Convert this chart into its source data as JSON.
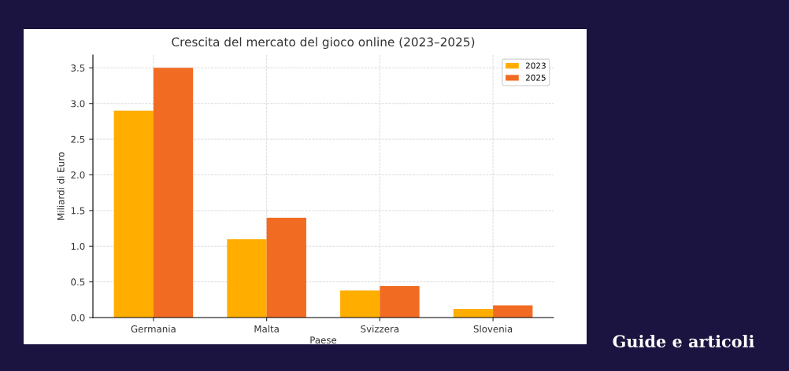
{
  "chart_data": {
    "type": "bar",
    "title": "Crescita del mercato del gioco online (2023–2025)",
    "xlabel": "Paese",
    "ylabel": "Miliardi di Euro",
    "categories": [
      "Germania",
      "Malta",
      "Svizzera",
      "Slovenia"
    ],
    "series": [
      {
        "name": "2023",
        "color": "#ffae00",
        "values": [
          2.9,
          1.1,
          0.38,
          0.12
        ]
      },
      {
        "name": "2025",
        "color": "#f26b22",
        "values": [
          3.5,
          1.4,
          0.44,
          0.17
        ]
      }
    ],
    "ylim": [
      0,
      3.68
    ],
    "yticks": [
      {
        "value": 0,
        "label": "0.0"
      },
      0.5,
      {
        "value": 1,
        "label": "1.0"
      },
      1.5,
      {
        "value": 2,
        "label": "2.0"
      },
      2.5,
      {
        "value": 3,
        "label": "3.0"
      },
      3.5
    ],
    "grid": true,
    "legend": "top right",
    "annotations": [
      "Guide e articoli"
    ]
  }
}
